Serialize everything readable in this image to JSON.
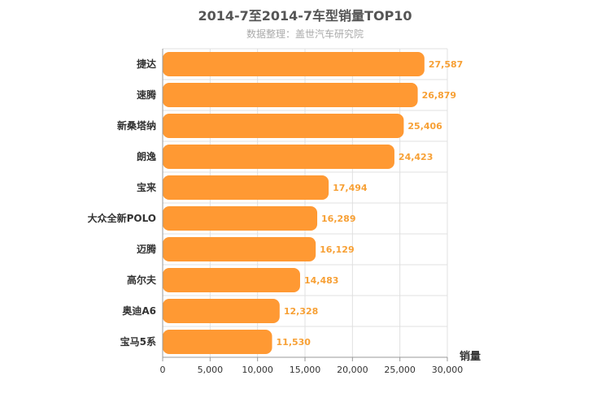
{
  "chart_data": {
    "type": "bar",
    "orientation": "horizontal",
    "title": "2014-7至2014-7车型销量TOP10",
    "subtitle": "数据整理：盖世汽车研究院",
    "xlabel": "销量",
    "xlim": [
      0,
      30000
    ],
    "ticks": [
      "0",
      "5,000",
      "10,000",
      "15,000",
      "20,000",
      "25,000",
      "30,000"
    ],
    "tick_values": [
      0,
      5000,
      10000,
      15000,
      20000,
      25000,
      30000
    ],
    "grid": true,
    "bar_color": "#ff9933",
    "categories": [
      "捷达",
      "速腾",
      "新桑塔纳",
      "朗逸",
      "宝来",
      "大众全新POLO",
      "迈腾",
      "高尔夫",
      "奥迪A6",
      "宝马5系"
    ],
    "values": [
      27587,
      26879,
      25406,
      24423,
      17494,
      16289,
      16129,
      14483,
      12328,
      11530
    ],
    "data_labels": [
      "27,587",
      "26,879",
      "25,406",
      "24,423",
      "17,494",
      "16,289",
      "16,129",
      "14,483",
      "12,328",
      "11,530"
    ]
  }
}
